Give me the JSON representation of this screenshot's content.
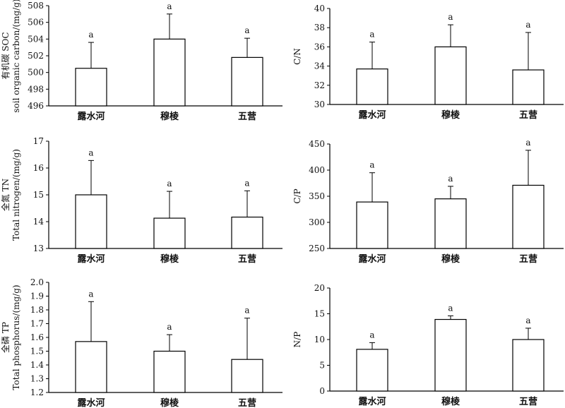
{
  "chart_data": [
    {
      "type": "bar",
      "categories": [
        "露水河",
        "穆棱",
        "五营"
      ],
      "values": [
        500.5,
        504.0,
        501.8
      ],
      "errors": [
        3.1,
        3.0,
        2.3
      ],
      "significance": [
        "a",
        "a",
        "a"
      ],
      "ylabel_lines": [
        "有机碳 SOC",
        "soil organic carbon/(mg/g)"
      ],
      "ylim": [
        496,
        508
      ],
      "yticks": [
        "496",
        "498",
        "500",
        "502",
        "504",
        "506",
        "508"
      ]
    },
    {
      "type": "bar",
      "categories": [
        "露水河",
        "穆棱",
        "五营"
      ],
      "values": [
        33.7,
        36.0,
        33.6
      ],
      "errors": [
        2.8,
        2.3,
        3.9
      ],
      "significance": [
        "a",
        "a",
        "a"
      ],
      "ylabel_lines": [
        "C/N"
      ],
      "ylim": [
        30,
        40
      ],
      "yticks": [
        "30",
        "32",
        "34",
        "36",
        "38",
        "40"
      ]
    },
    {
      "type": "bar",
      "categories": [
        "露水河",
        "穆棱",
        "五营"
      ],
      "values": [
        15.0,
        14.13,
        14.17
      ],
      "errors": [
        1.28,
        1.0,
        0.98
      ],
      "significance": [
        "a",
        "a",
        "a"
      ],
      "ylabel_lines": [
        "全氮 TN",
        "Total nitrogen/(mg/g)"
      ],
      "ylim": [
        13,
        17
      ],
      "yticks": [
        "13",
        "14",
        "15",
        "16",
        "17"
      ]
    },
    {
      "type": "bar",
      "categories": [
        "露水河",
        "穆棱",
        "五营"
      ],
      "values": [
        339,
        345,
        371
      ],
      "errors": [
        56,
        24,
        67
      ],
      "significance": [
        "a",
        "a",
        "a"
      ],
      "ylabel_lines": [
        "C/P"
      ],
      "ylim": [
        250,
        450
      ],
      "yticks": [
        "250",
        "300",
        "350",
        "400",
        "450"
      ]
    },
    {
      "type": "bar",
      "categories": [
        "露水河",
        "穆棱",
        "五营"
      ],
      "values": [
        1.57,
        1.5,
        1.44
      ],
      "errors": [
        0.29,
        0.12,
        0.3
      ],
      "significance": [
        "a",
        "a",
        "a"
      ],
      "ylabel_lines": [
        "全磷 TP",
        "Total phosphorus/(mg/g)"
      ],
      "ylim": [
        1.2,
        2.0
      ],
      "yticks": [
        "1.2",
        "1.3",
        "1.4",
        "1.5",
        "1.6",
        "1.7",
        "1.8",
        "1.9",
        "2.0"
      ]
    },
    {
      "type": "bar",
      "categories": [
        "露水河",
        "穆棱",
        "五营"
      ],
      "values": [
        8.1,
        13.9,
        10.0
      ],
      "errors": [
        1.3,
        0.7,
        2.2
      ],
      "significance": [
        "a",
        "a",
        "a"
      ],
      "ylabel_lines": [
        "N/P"
      ],
      "ylim": [
        0,
        20
      ],
      "yticks": [
        "0",
        "5",
        "10",
        "15",
        "20"
      ]
    }
  ]
}
